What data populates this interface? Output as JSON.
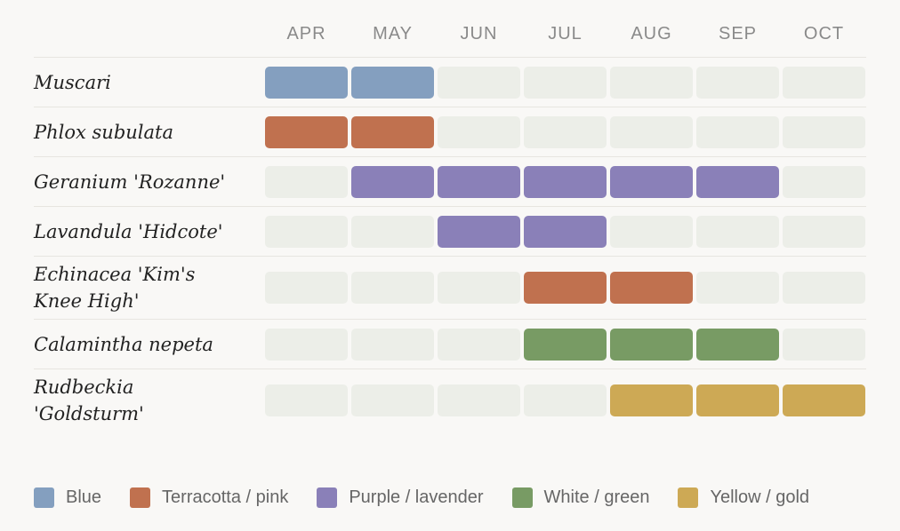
{
  "months": [
    "APR",
    "MAY",
    "JUN",
    "JUL",
    "AUG",
    "SEP",
    "OCT"
  ],
  "legend": [
    {
      "label": "Blue",
      "color": "#849fbf"
    },
    {
      "label": "Terracotta / pink",
      "color": "#c0714f"
    },
    {
      "label": "Purple / lavender",
      "color": "#8a80b8"
    },
    {
      "label": "White / green",
      "color": "#789b64"
    },
    {
      "label": "Yellow / gold",
      "color": "#cda955"
    }
  ],
  "rows": [
    {
      "name": "Muscari",
      "legend": 0,
      "bloom": [
        1,
        1,
        0,
        0,
        0,
        0,
        0
      ]
    },
    {
      "name": "Phlox subulata",
      "legend": 1,
      "bloom": [
        1,
        1,
        0,
        0,
        0,
        0,
        0
      ]
    },
    {
      "name": "Geranium 'Rozanne'",
      "legend": 2,
      "bloom": [
        0,
        1,
        1,
        1,
        1,
        1,
        0
      ]
    },
    {
      "name": "Lavandula 'Hidcote'",
      "legend": 2,
      "bloom": [
        0,
        0,
        1,
        1,
        0,
        0,
        0
      ]
    },
    {
      "name": "Echinacea 'Kim's Knee High'",
      "legend": 1,
      "bloom": [
        0,
        0,
        0,
        1,
        1,
        0,
        0
      ]
    },
    {
      "name": "Calamintha nepeta",
      "legend": 3,
      "bloom": [
        0,
        0,
        0,
        1,
        1,
        1,
        0
      ]
    },
    {
      "name": "Rudbeckia 'Goldsturm'",
      "legend": 4,
      "bloom": [
        0,
        0,
        0,
        0,
        1,
        1,
        1
      ]
    }
  ]
}
